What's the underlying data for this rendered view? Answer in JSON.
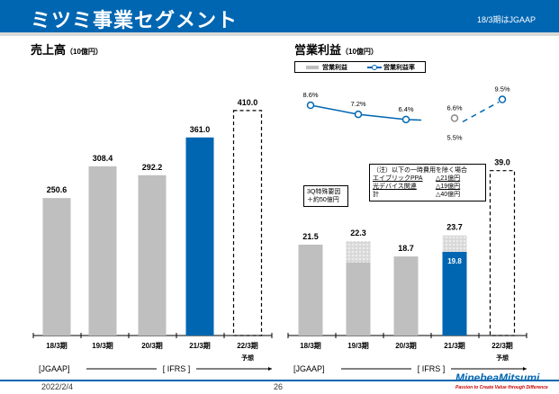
{
  "header": {
    "title": "ミツミ事業セグメント",
    "note": "18/3期はJGAAP"
  },
  "footer": {
    "date": "2022/2/4",
    "page": "26",
    "logo": "MinebeaMitsumi",
    "tagline": "Passion to Create Value through Difference"
  },
  "chart_data": [
    {
      "type": "bar",
      "title": "売上高",
      "unit": "（10億円）",
      "categories": [
        "18/3期",
        "19/3期",
        "20/3期",
        "21/3期",
        "22/3期"
      ],
      "category_sublabels": [
        "",
        "",
        "",
        "",
        "予想"
      ],
      "values": [
        250.6,
        308.4,
        292.2,
        361.0,
        410.0
      ],
      "labels": [
        "250.6",
        "308.4",
        "292.2",
        "361.0",
        "410.0"
      ],
      "bar_styles": [
        "gray",
        "gray",
        "gray",
        "blue",
        "dashed-forecast"
      ],
      "colors": {
        "gray": "#bfbfbf",
        "blue": "#0066b2"
      },
      "periods": [
        "[JGAAP]",
        "[ IFRS ]"
      ]
    },
    {
      "type": "bar+line",
      "title": "営業利益",
      "unit": "（10億円）",
      "legend": [
        "営業利益",
        "営業利益率"
      ],
      "categories": [
        "18/3期",
        "19/3期",
        "20/3期",
        "21/3期",
        "22/3期"
      ],
      "category_sublabels": [
        "",
        "",
        "",
        "",
        "予想"
      ],
      "series": [
        {
          "name": "営業利益",
          "values": [
            21.5,
            22.3,
            18.7,
            23.7,
            39.0
          ],
          "labels": [
            "21.5",
            "22.3",
            "18.7",
            "23.7",
            "39.0"
          ]
        },
        {
          "name": "営業利益率",
          "values": [
            8.6,
            7.2,
            6.4,
            6.6,
            9.5
          ],
          "labels": [
            "8.6%",
            "7.2%",
            "6.4%",
            "6.6%",
            "9.5%"
          ],
          "extra_label": "5.5%"
        }
      ],
      "hatched_portion": {
        "19/3期": 5.0,
        "21/3期": 3.9
      },
      "inner_label": "19.8",
      "bar_styles": [
        "gray",
        "gray-hatched",
        "gray",
        "blue-hatched",
        "dashed-forecast"
      ],
      "colors": {
        "gray": "#bfbfbf",
        "blue": "#0066b2",
        "line": "#0066b2"
      },
      "periods": [
        "[JGAAP]",
        "[ IFRS ]"
      ],
      "annotations": {
        "q3": [
          "3Q特殊要因",
          "＋約50億円"
        ],
        "note": {
          "title": "（注）以下の一時費用を除く場合",
          "rows": [
            [
              "エイブリックPPA",
              "△21億円"
            ],
            [
              "光デバイス関連",
              "△19億円"
            ],
            [
              "計",
              "△40億円"
            ]
          ]
        }
      }
    }
  ]
}
